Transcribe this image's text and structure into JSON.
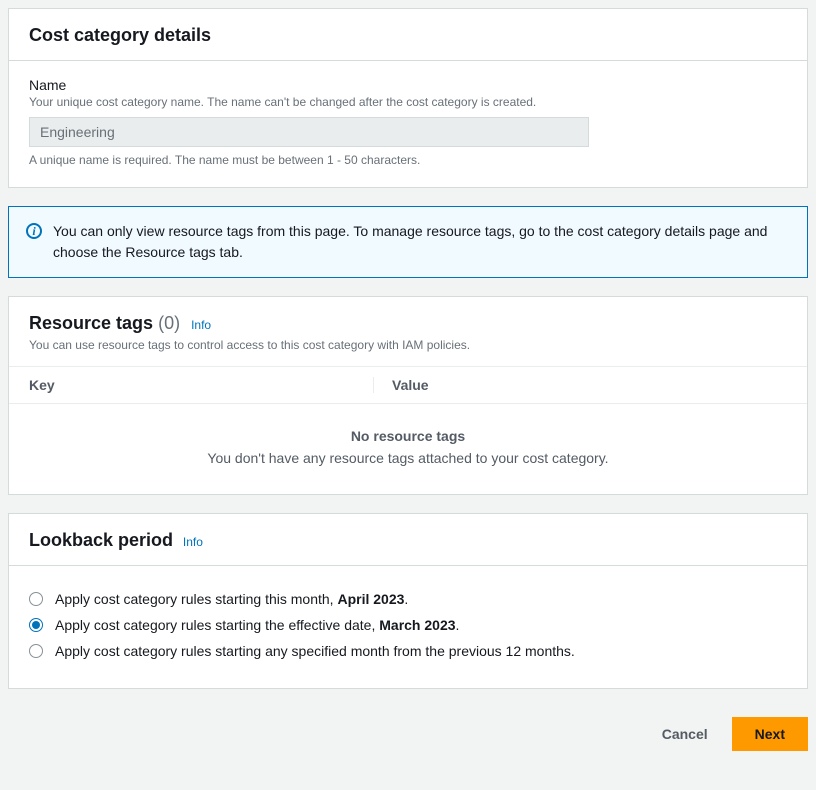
{
  "cost_category_details": {
    "title": "Cost category details",
    "name_label": "Name",
    "name_hint": "Your unique cost category name. The name can't be changed after the cost category is created.",
    "name_value": "Engineering",
    "name_constraint": "A unique name is required. The name must be between 1 - 50 characters."
  },
  "info_alert": {
    "text": "You can only view resource tags from this page. To manage resource tags, go to the cost category details page and choose the Resource tags tab."
  },
  "resource_tags": {
    "title": "Resource tags",
    "count": "(0)",
    "info_label": "Info",
    "subtitle": "You can use resource tags to control access to this cost category with IAM policies.",
    "columns": {
      "key": "Key",
      "value": "Value"
    },
    "empty_title": "No resource tags",
    "empty_sub": "You don't have any resource tags attached to your cost category."
  },
  "lookback": {
    "title": "Lookback period",
    "info_label": "Info",
    "options": [
      {
        "prefix": "Apply cost category rules starting this month, ",
        "bold": "April 2023",
        "suffix": ".",
        "selected": false
      },
      {
        "prefix": "Apply cost category rules starting the effective date, ",
        "bold": "March 2023",
        "suffix": ".",
        "selected": true
      },
      {
        "prefix": "Apply cost category rules starting any specified month from the previous 12 months.",
        "bold": "",
        "suffix": "",
        "selected": false
      }
    ]
  },
  "footer": {
    "cancel": "Cancel",
    "next": "Next"
  },
  "colors": {
    "accent": "#0073bb",
    "primary_button": "#ff9900",
    "panel_border": "#d5dbdb",
    "page_bg": "#f2f3f3",
    "muted_text": "#687078"
  }
}
